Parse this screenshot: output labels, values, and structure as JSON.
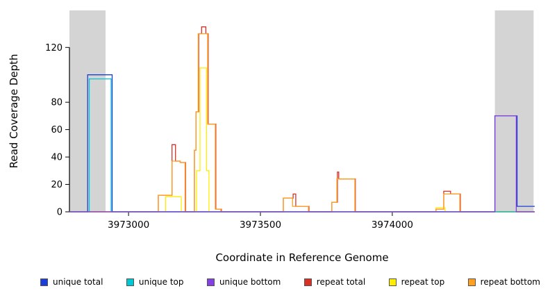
{
  "chart_data": {
    "type": "line",
    "title": "",
    "xlabel": "Coordinate in Reference Genome",
    "ylabel": "Read Coverage Depth",
    "xlim": [
      3972776,
      3974540
    ],
    "ylim": [
      0,
      147
    ],
    "x_ticks": [
      3973000,
      3973500,
      3974000
    ],
    "y_ticks": [
      0,
      20,
      40,
      60,
      80,
      120
    ],
    "grid": false,
    "shade_color": "#d4d4d4",
    "shaded_regions": [
      {
        "x0": 3972776,
        "x1": 3972913
      },
      {
        "x0": 3974389,
        "x1": 3974536
      }
    ],
    "legend": [
      {
        "label": "unique total",
        "color": "#1c3ed8"
      },
      {
        "label": "unique top",
        "color": "#00c8d2"
      },
      {
        "label": "unique bottom",
        "color": "#8440e0"
      },
      {
        "label": "repeat total",
        "color": "#d93025"
      },
      {
        "label": "repeat top",
        "color": "#ffee00"
      },
      {
        "label": "repeat bottom",
        "color": "#ffa020"
      }
    ],
    "series": [
      {
        "name": "repeat total",
        "color": "#d93025",
        "points": [
          [
            3972776,
            0
          ],
          [
            3973113,
            0
          ],
          [
            3973113,
            12
          ],
          [
            3973165,
            12
          ],
          [
            3973165,
            49
          ],
          [
            3973178,
            49
          ],
          [
            3973178,
            37
          ],
          [
            3973196,
            37
          ],
          [
            3973196,
            36
          ],
          [
            3973216,
            36
          ],
          [
            3973216,
            0
          ],
          [
            3973250,
            0
          ],
          [
            3973250,
            45
          ],
          [
            3973256,
            45
          ],
          [
            3973256,
            73
          ],
          [
            3973266,
            73
          ],
          [
            3973266,
            130
          ],
          [
            3973277,
            130
          ],
          [
            3973277,
            135
          ],
          [
            3973293,
            135
          ],
          [
            3973293,
            130
          ],
          [
            3973302,
            130
          ],
          [
            3973302,
            64
          ],
          [
            3973331,
            64
          ],
          [
            3973331,
            2
          ],
          [
            3973352,
            2
          ],
          [
            3973352,
            0
          ],
          [
            3973587,
            0
          ],
          [
            3973587,
            10
          ],
          [
            3973624,
            10
          ],
          [
            3973624,
            13
          ],
          [
            3973634,
            13
          ],
          [
            3973634,
            4
          ],
          [
            3973684,
            4
          ],
          [
            3973684,
            0
          ],
          [
            3973771,
            0
          ],
          [
            3973771,
            7
          ],
          [
            3973792,
            7
          ],
          [
            3973792,
            29
          ],
          [
            3973797,
            29
          ],
          [
            3973797,
            24
          ],
          [
            3973860,
            24
          ],
          [
            3973860,
            0
          ],
          [
            3974166,
            0
          ],
          [
            3974166,
            2
          ],
          [
            3974195,
            2
          ],
          [
            3974195,
            15
          ],
          [
            3974221,
            15
          ],
          [
            3974221,
            13
          ],
          [
            3974258,
            13
          ],
          [
            3974258,
            0
          ],
          [
            3974540,
            0
          ]
        ]
      },
      {
        "name": "repeat top",
        "color": "#ffee00",
        "points": [
          [
            3972776,
            0
          ],
          [
            3973140,
            0
          ],
          [
            3973140,
            11
          ],
          [
            3973200,
            11
          ],
          [
            3973200,
            0
          ],
          [
            3973258,
            0
          ],
          [
            3973258,
            30
          ],
          [
            3973271,
            30
          ],
          [
            3973271,
            105
          ],
          [
            3973296,
            105
          ],
          [
            3973296,
            30
          ],
          [
            3973305,
            30
          ],
          [
            3973305,
            0
          ],
          [
            3974166,
            0
          ],
          [
            3974166,
            3
          ],
          [
            3974200,
            3
          ],
          [
            3974200,
            0
          ],
          [
            3974540,
            0
          ]
        ]
      },
      {
        "name": "repeat bottom",
        "color": "#ffa020",
        "points": [
          [
            3972776,
            0
          ],
          [
            3973113,
            0
          ],
          [
            3973113,
            12
          ],
          [
            3973165,
            12
          ],
          [
            3973165,
            37
          ],
          [
            3973196,
            37
          ],
          [
            3973196,
            36
          ],
          [
            3973214,
            36
          ],
          [
            3973214,
            0
          ],
          [
            3973250,
            0
          ],
          [
            3973250,
            45
          ],
          [
            3973256,
            45
          ],
          [
            3973256,
            73
          ],
          [
            3973264,
            73
          ],
          [
            3973264,
            130
          ],
          [
            3973300,
            130
          ],
          [
            3973300,
            64
          ],
          [
            3973329,
            64
          ],
          [
            3973329,
            2
          ],
          [
            3973350,
            2
          ],
          [
            3973350,
            0
          ],
          [
            3973587,
            0
          ],
          [
            3973587,
            10
          ],
          [
            3973622,
            10
          ],
          [
            3973622,
            4
          ],
          [
            3973682,
            4
          ],
          [
            3973682,
            0
          ],
          [
            3973771,
            0
          ],
          [
            3973771,
            7
          ],
          [
            3973790,
            7
          ],
          [
            3973790,
            24
          ],
          [
            3973858,
            24
          ],
          [
            3973858,
            0
          ],
          [
            3974166,
            0
          ],
          [
            3974166,
            2
          ],
          [
            3974195,
            2
          ],
          [
            3974195,
            13
          ],
          [
            3974256,
            13
          ],
          [
            3974256,
            0
          ],
          [
            3974540,
            0
          ]
        ]
      },
      {
        "name": "unique total",
        "color": "#1c3ed8",
        "points": [
          [
            3972776,
            0
          ],
          [
            3972845,
            0
          ],
          [
            3972845,
            100
          ],
          [
            3972938,
            100
          ],
          [
            3972938,
            0
          ],
          [
            3974389,
            0
          ],
          [
            3974389,
            70
          ],
          [
            3974473,
            70
          ],
          [
            3974473,
            4
          ],
          [
            3974540,
            4
          ]
        ]
      },
      {
        "name": "unique top",
        "color": "#00c8d2",
        "points": [
          [
            3972776,
            0
          ],
          [
            3972851,
            0
          ],
          [
            3972851,
            97
          ],
          [
            3972934,
            97
          ],
          [
            3972934,
            0
          ],
          [
            3974540,
            0
          ]
        ]
      },
      {
        "name": "unique bottom",
        "color": "#8440e0",
        "points": [
          [
            3972776,
            0
          ],
          [
            3974389,
            0
          ],
          [
            3974389,
            70
          ],
          [
            3974470,
            70
          ],
          [
            3974470,
            0
          ],
          [
            3974540,
            0
          ]
        ]
      }
    ]
  }
}
